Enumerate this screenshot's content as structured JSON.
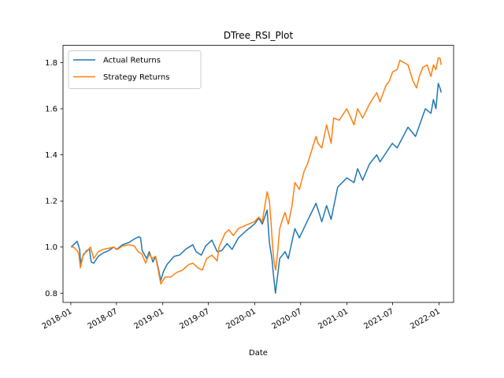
{
  "chart_data": {
    "type": "line",
    "title": "DTree_RSI_Plot",
    "xlabel": "Date",
    "ylabel": "",
    "xlim": [
      "2017-12-01",
      "2022-02-28"
    ],
    "ylim": [
      0.76,
      1.875
    ],
    "x_ticks": [
      "2018-01",
      "2018-07",
      "2019-01",
      "2019-07",
      "2020-01",
      "2020-07",
      "2021-01",
      "2021-07",
      "2022-01"
    ],
    "y_ticks": [
      0.8,
      1.0,
      1.2,
      1.4,
      1.6,
      1.8
    ],
    "y_tick_labels": [
      "0.8",
      "1.0",
      "1.2",
      "1.4",
      "1.6",
      "1.8"
    ],
    "grid": false,
    "legend": "top-left",
    "series": [
      {
        "name": "Actual Returns",
        "color": "#1f77b4",
        "points": [
          [
            "2018-01-02",
            1.0
          ],
          [
            "2018-01-12",
            1.01
          ],
          [
            "2018-01-26",
            1.025
          ],
          [
            "2018-02-05",
            0.99
          ],
          [
            "2018-02-09",
            0.93
          ],
          [
            "2018-02-20",
            0.965
          ],
          [
            "2018-03-05",
            0.985
          ],
          [
            "2018-03-16",
            0.99
          ],
          [
            "2018-03-23",
            0.935
          ],
          [
            "2018-04-02",
            0.93
          ],
          [
            "2018-04-20",
            0.96
          ],
          [
            "2018-05-10",
            0.975
          ],
          [
            "2018-06-01",
            0.985
          ],
          [
            "2018-06-20",
            1.0
          ],
          [
            "2018-07-02",
            0.99
          ],
          [
            "2018-07-25",
            1.01
          ],
          [
            "2018-08-20",
            1.02
          ],
          [
            "2018-09-10",
            1.035
          ],
          [
            "2018-09-28",
            1.045
          ],
          [
            "2018-10-05",
            1.04
          ],
          [
            "2018-10-11",
            0.985
          ],
          [
            "2018-10-29",
            0.95
          ],
          [
            "2018-11-08",
            0.98
          ],
          [
            "2018-11-23",
            0.935
          ],
          [
            "2018-12-03",
            0.96
          ],
          [
            "2018-12-14",
            0.91
          ],
          [
            "2018-12-24",
            0.855
          ],
          [
            "2019-01-04",
            0.895
          ],
          [
            "2019-01-18",
            0.925
          ],
          [
            "2019-02-15",
            0.96
          ],
          [
            "2019-03-08",
            0.965
          ],
          [
            "2019-04-01",
            0.99
          ],
          [
            "2019-04-30",
            1.01
          ],
          [
            "2019-05-13",
            0.98
          ],
          [
            "2019-06-03",
            0.965
          ],
          [
            "2019-06-20",
            1.005
          ],
          [
            "2019-07-15",
            1.03
          ],
          [
            "2019-08-05",
            0.98
          ],
          [
            "2019-08-23",
            0.985
          ],
          [
            "2019-09-13",
            1.015
          ],
          [
            "2019-10-03",
            0.99
          ],
          [
            "2019-10-28",
            1.04
          ],
          [
            "2019-11-27",
            1.07
          ],
          [
            "2019-12-31",
            1.1
          ],
          [
            "2020-01-17",
            1.125
          ],
          [
            "2020-01-31",
            1.1
          ],
          [
            "2020-02-19",
            1.16
          ],
          [
            "2020-02-28",
            1.02
          ],
          [
            "2020-03-09",
            0.95
          ],
          [
            "2020-03-16",
            0.87
          ],
          [
            "2020-03-23",
            0.8
          ],
          [
            "2020-04-09",
            0.95
          ],
          [
            "2020-04-30",
            0.98
          ],
          [
            "2020-05-13",
            0.95
          ],
          [
            "2020-06-08",
            1.08
          ],
          [
            "2020-06-26",
            1.04
          ],
          [
            "2020-07-22",
            1.1
          ],
          [
            "2020-08-31",
            1.19
          ],
          [
            "2020-09-23",
            1.11
          ],
          [
            "2020-10-12",
            1.18
          ],
          [
            "2020-10-30",
            1.12
          ],
          [
            "2020-11-25",
            1.26
          ],
          [
            "2020-12-31",
            1.3
          ],
          [
            "2021-01-29",
            1.28
          ],
          [
            "2021-02-12",
            1.34
          ],
          [
            "2021-03-04",
            1.29
          ],
          [
            "2021-03-31",
            1.36
          ],
          [
            "2021-04-29",
            1.4
          ],
          [
            "2021-05-12",
            1.37
          ],
          [
            "2021-06-30",
            1.45
          ],
          [
            "2021-07-19",
            1.43
          ],
          [
            "2021-08-31",
            1.52
          ],
          [
            "2021-09-30",
            1.48
          ],
          [
            "2021-10-29",
            1.57
          ],
          [
            "2021-11-08",
            1.6
          ],
          [
            "2021-11-30",
            1.58
          ],
          [
            "2021-12-10",
            1.64
          ],
          [
            "2021-12-20",
            1.6
          ],
          [
            "2021-12-29",
            1.71
          ],
          [
            "2022-01-05",
            1.69
          ],
          [
            "2022-01-10",
            1.67
          ]
        ]
      },
      {
        "name": "Strategy Returns",
        "color": "#ff7f0e",
        "points": [
          [
            "2018-01-02",
            1.0
          ],
          [
            "2018-01-12",
            1.0
          ],
          [
            "2018-01-26",
            0.985
          ],
          [
            "2018-02-02",
            0.97
          ],
          [
            "2018-02-08",
            0.91
          ],
          [
            "2018-02-20",
            0.97
          ],
          [
            "2018-03-05",
            0.98
          ],
          [
            "2018-03-20",
            1.0
          ],
          [
            "2018-04-02",
            0.95
          ],
          [
            "2018-04-20",
            0.98
          ],
          [
            "2018-05-10",
            0.99
          ],
          [
            "2018-06-01",
            0.995
          ],
          [
            "2018-06-20",
            1.0
          ],
          [
            "2018-07-06",
            0.99
          ],
          [
            "2018-07-25",
            1.005
          ],
          [
            "2018-08-20",
            1.01
          ],
          [
            "2018-09-10",
            1.005
          ],
          [
            "2018-09-25",
            0.98
          ],
          [
            "2018-10-10",
            0.97
          ],
          [
            "2018-10-25",
            0.93
          ],
          [
            "2018-11-08",
            0.97
          ],
          [
            "2018-11-20",
            0.95
          ],
          [
            "2018-12-03",
            0.96
          ],
          [
            "2018-12-14",
            0.9
          ],
          [
            "2018-12-24",
            0.84
          ],
          [
            "2019-01-10",
            0.87
          ],
          [
            "2019-02-01",
            0.87
          ],
          [
            "2019-02-25",
            0.89
          ],
          [
            "2019-03-20",
            0.9
          ],
          [
            "2019-04-15",
            0.925
          ],
          [
            "2019-05-01",
            0.93
          ],
          [
            "2019-05-20",
            0.91
          ],
          [
            "2019-06-07",
            0.9
          ],
          [
            "2019-06-24",
            0.95
          ],
          [
            "2019-07-15",
            0.965
          ],
          [
            "2019-08-05",
            0.94
          ],
          [
            "2019-08-12",
            1.0
          ],
          [
            "2019-08-20",
            1.02
          ],
          [
            "2019-09-05",
            1.06
          ],
          [
            "2019-09-20",
            1.075
          ],
          [
            "2019-10-08",
            1.05
          ],
          [
            "2019-10-28",
            1.08
          ],
          [
            "2019-11-27",
            1.095
          ],
          [
            "2019-12-31",
            1.11
          ],
          [
            "2020-01-17",
            1.13
          ],
          [
            "2020-01-31",
            1.11
          ],
          [
            "2020-02-19",
            1.24
          ],
          [
            "2020-02-28",
            1.2
          ],
          [
            "2020-03-06",
            1.1
          ],
          [
            "2020-03-12",
            1.0
          ],
          [
            "2020-03-18",
            0.93
          ],
          [
            "2020-03-24",
            0.9
          ],
          [
            "2020-03-31",
            0.97
          ],
          [
            "2020-04-09",
            1.08
          ],
          [
            "2020-04-20",
            1.12
          ],
          [
            "2020-04-30",
            1.15
          ],
          [
            "2020-05-13",
            1.1
          ],
          [
            "2020-05-28",
            1.18
          ],
          [
            "2020-06-08",
            1.28
          ],
          [
            "2020-06-26",
            1.25
          ],
          [
            "2020-07-15",
            1.33
          ],
          [
            "2020-07-28",
            1.36
          ],
          [
            "2020-08-31",
            1.48
          ],
          [
            "2020-09-08",
            1.45
          ],
          [
            "2020-09-23",
            1.43
          ],
          [
            "2020-10-12",
            1.53
          ],
          [
            "2020-10-30",
            1.45
          ],
          [
            "2020-11-09",
            1.56
          ],
          [
            "2020-12-01",
            1.55
          ],
          [
            "2020-12-31",
            1.6
          ],
          [
            "2021-01-29",
            1.53
          ],
          [
            "2021-02-12",
            1.6
          ],
          [
            "2021-03-04",
            1.56
          ],
          [
            "2021-03-31",
            1.62
          ],
          [
            "2021-04-29",
            1.67
          ],
          [
            "2021-05-12",
            1.63
          ],
          [
            "2021-06-04",
            1.7
          ],
          [
            "2021-06-18",
            1.72
          ],
          [
            "2021-07-01",
            1.76
          ],
          [
            "2021-07-19",
            1.77
          ],
          [
            "2021-07-30",
            1.81
          ],
          [
            "2021-08-16",
            1.8
          ],
          [
            "2021-08-31",
            1.79
          ],
          [
            "2021-09-20",
            1.72
          ],
          [
            "2021-10-04",
            1.69
          ],
          [
            "2021-10-15",
            1.74
          ],
          [
            "2021-10-29",
            1.78
          ],
          [
            "2021-11-15",
            1.79
          ],
          [
            "2021-11-30",
            1.74
          ],
          [
            "2021-12-10",
            1.79
          ],
          [
            "2021-12-20",
            1.77
          ],
          [
            "2021-12-29",
            1.82
          ],
          [
            "2022-01-05",
            1.82
          ],
          [
            "2022-01-10",
            1.79
          ]
        ]
      }
    ]
  }
}
